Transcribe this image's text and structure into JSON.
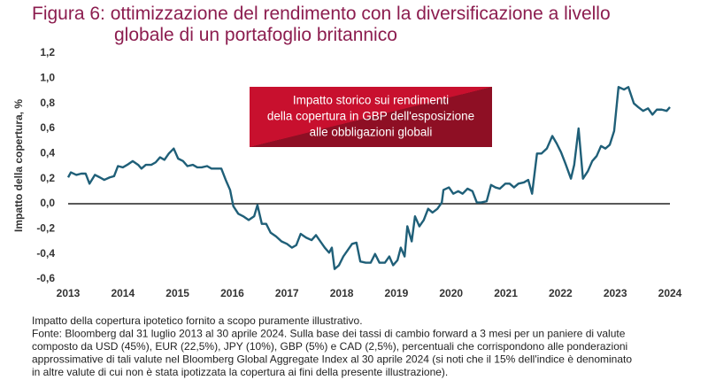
{
  "chart_data": {
    "type": "line",
    "title": [
      "Figura 6: ottimizzazione del rendimento con la diversificazione a livello",
      "globale di un portafoglio britannico"
    ],
    "y_label": "Impatto della copertura, %",
    "annotation": [
      "Impatto storico sui rendimenti",
      "della copertura in GBP dell'esposizione",
      "alle obbligazioni globali"
    ],
    "notes": [
      "Impatto della copertura ipotetico fornito a scopo puramente illustrativo.",
      "Fonte: Bloomberg dal 31 luglio 2013 al 30 aprile 2024. Sulla base dei tassi di cambio forward a 3 mesi per un paniere di valute",
      "composto da USD (45%), EUR (22,5%), JPY (10%), GBP (5%) e CAD (2,5%), percentuali che corrispondono alle ponderazioni",
      "approssimative di tali valute nel Bloomberg Global Aggregate Index al 30 aprile 2024 (si noti che il 15% dell'indice è denominato",
      "in altre valute di cui non è stata ipotizzata la copertura ai fini della presente illustrazione)."
    ],
    "xlim": [
      2013,
      2024
    ],
    "xticks": [
      2013,
      2014,
      2015,
      2016,
      2017,
      2018,
      2019,
      2020,
      2021,
      2022,
      2023,
      2024
    ],
    "ylim": [
      -0.6,
      1.2
    ],
    "yticks": [
      {
        "value": -0.6,
        "label": "-0,6"
      },
      {
        "value": -0.4,
        "label": "-0,4"
      },
      {
        "value": -0.2,
        "label": "-0,2"
      },
      {
        "value": 0,
        "label": "0,0"
      },
      {
        "value": 0.2,
        "label": "0,2"
      },
      {
        "value": 0.4,
        "label": "0,4"
      },
      {
        "value": 0.6,
        "label": "0,6"
      },
      {
        "value": 0.8,
        "label": "0,8"
      },
      {
        "value": 1.0,
        "label": "1,0"
      },
      {
        "value": 1.2,
        "label": "1,2"
      }
    ],
    "zero_line": true,
    "grid": false,
    "x": [
      2013.0,
      2013.05,
      2013.15,
      2013.24,
      2013.32,
      2013.39,
      2013.49,
      2013.58,
      2013.66,
      2013.76,
      2013.84,
      2013.91,
      2014.0,
      2014.08,
      2014.18,
      2014.28,
      2014.34,
      2014.42,
      2014.52,
      2014.6,
      2014.68,
      2014.76,
      2014.84,
      2014.93,
      2015.01,
      2015.1,
      2015.18,
      2015.28,
      2015.36,
      2015.44,
      2015.54,
      2015.62,
      2015.72,
      2015.8,
      2015.88,
      2015.96,
      2016.02,
      2016.11,
      2016.2,
      2016.3,
      2016.4,
      2016.46,
      2016.54,
      2016.62,
      2016.7,
      2016.8,
      2016.9,
      2017.0,
      2017.09,
      2017.17,
      2017.25,
      2017.35,
      2017.45,
      2017.53,
      2017.61,
      2017.69,
      2017.77,
      2017.82,
      2017.87,
      2017.95,
      2018.03,
      2018.11,
      2018.19,
      2018.27,
      2018.34,
      2018.44,
      2018.53,
      2018.61,
      2018.69,
      2018.79,
      2018.87,
      2018.94,
      2019.02,
      2019.08,
      2019.15,
      2019.2,
      2019.28,
      2019.34,
      2019.42,
      2019.5,
      2019.58,
      2019.66,
      2019.75,
      2019.83,
      2019.86,
      2019.96,
      2020.04,
      2020.13,
      2020.21,
      2020.3,
      2020.39,
      2020.47,
      2020.55,
      2020.65,
      2020.73,
      2020.81,
      2020.89,
      2020.99,
      2021.07,
      2021.15,
      2021.23,
      2021.33,
      2021.41,
      2021.48,
      2021.57,
      2021.65,
      2021.75,
      2021.85,
      2021.93,
      2022.01,
      2022.09,
      2022.19,
      2022.25,
      2022.33,
      2022.41,
      2022.5,
      2022.58,
      2022.66,
      2022.74,
      2022.82,
      2022.9,
      2022.98,
      2023.06,
      2023.16,
      2023.24,
      2023.34,
      2023.42,
      2023.51,
      2023.6,
      2023.68,
      2023.76,
      2023.85,
      2023.94,
      2024.0
    ],
    "series": [
      {
        "color": "#1f5f78",
        "values": [
          0.21,
          0.25,
          0.23,
          0.24,
          0.24,
          0.16,
          0.23,
          0.21,
          0.19,
          0.21,
          0.22,
          0.3,
          0.29,
          0.31,
          0.34,
          0.31,
          0.28,
          0.31,
          0.31,
          0.33,
          0.37,
          0.35,
          0.4,
          0.44,
          0.36,
          0.34,
          0.3,
          0.31,
          0.29,
          0.29,
          0.3,
          0.28,
          0.28,
          0.28,
          0.19,
          0.11,
          -0.02,
          -0.08,
          -0.1,
          -0.13,
          -0.1,
          -0.01,
          -0.16,
          -0.16,
          -0.23,
          -0.26,
          -0.3,
          -0.32,
          -0.35,
          -0.33,
          -0.24,
          -0.27,
          -0.29,
          -0.25,
          -0.3,
          -0.35,
          -0.39,
          -0.35,
          -0.52,
          -0.49,
          -0.42,
          -0.37,
          -0.32,
          -0.31,
          -0.46,
          -0.47,
          -0.47,
          -0.4,
          -0.47,
          -0.47,
          -0.42,
          -0.49,
          -0.45,
          -0.35,
          -0.42,
          -0.18,
          -0.3,
          -0.1,
          -0.18,
          -0.13,
          -0.04,
          -0.07,
          -0.04,
          0.01,
          0.11,
          0.13,
          0.08,
          0.1,
          0.08,
          0.12,
          0.1,
          0.01,
          0.01,
          0.02,
          0.15,
          0.13,
          0.12,
          0.16,
          0.16,
          0.13,
          0.16,
          0.17,
          0.19,
          0.08,
          0.4,
          0.4,
          0.44,
          0.54,
          0.48,
          0.41,
          0.32,
          0.2,
          0.31,
          0.6,
          0.2,
          0.26,
          0.34,
          0.38,
          0.46,
          0.44,
          0.47,
          0.58,
          0.93,
          0.91,
          0.93,
          0.8,
          0.77,
          0.74,
          0.76,
          0.71,
          0.75,
          0.75,
          0.74,
          0.77
        ]
      }
    ]
  }
}
